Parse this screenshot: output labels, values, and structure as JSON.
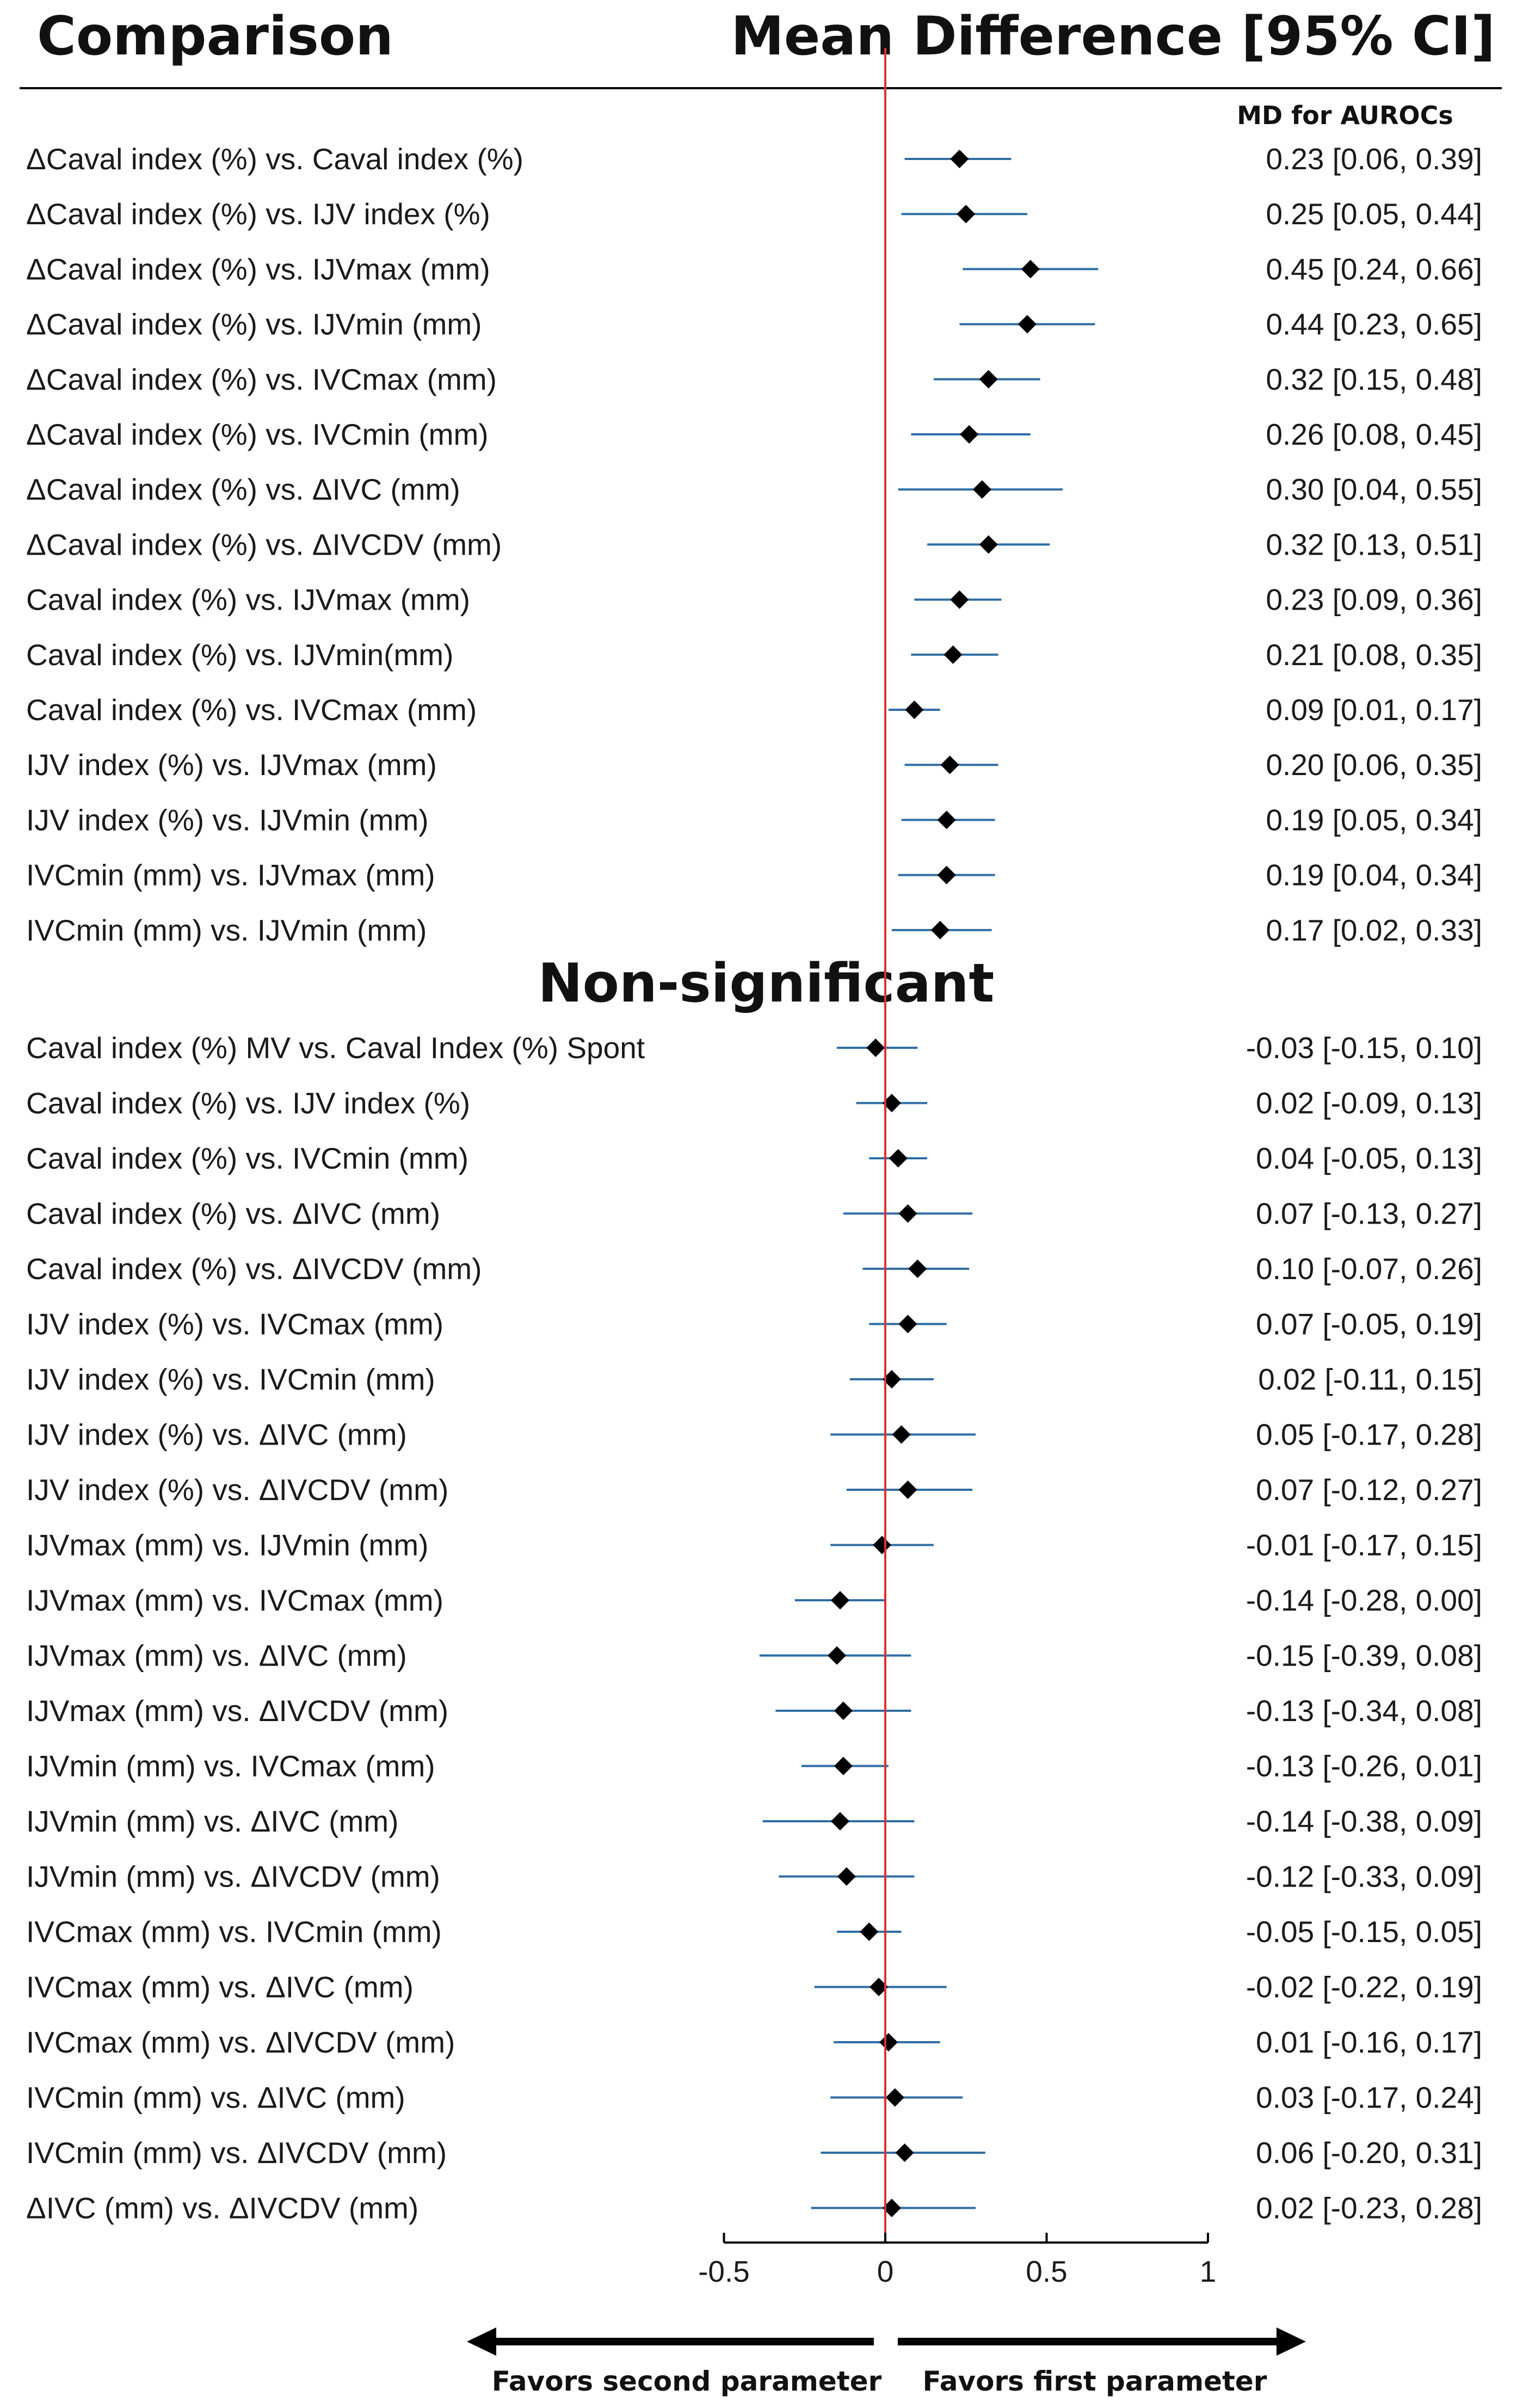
{
  "header": {
    "left": "Comparison",
    "right": "Mean Difference [95% CI]",
    "col_label": "MD for AUROCs"
  },
  "colors": {
    "ci_line": "#2e6da4",
    "zero_line": "#e03030",
    "marker": "#000000",
    "axis": "#000000"
  },
  "chart_data": {
    "type": "forest",
    "xlim": [
      -0.5,
      1
    ],
    "ticks": [
      {
        "value": -0.5,
        "label": "-0.5"
      },
      {
        "value": 0,
        "label": "0"
      },
      {
        "value": 0.5,
        "label": "0.5"
      },
      {
        "value": 1,
        "label": "1"
      }
    ],
    "sections": [
      {
        "title": "",
        "rows": [
          {
            "label": "ΔCaval index (%) vs. Caval index (%)",
            "md": 0.23,
            "lo": 0.06,
            "hi": 0.39,
            "text": "0.23 [0.06,  0.39]"
          },
          {
            "label": "ΔCaval index (%) vs. IJV index (%)",
            "md": 0.25,
            "lo": 0.05,
            "hi": 0.44,
            "text": "0.25 [0.05,  0.44]"
          },
          {
            "label": "ΔCaval index (%) vs. IJVmax (mm)",
            "md": 0.45,
            "lo": 0.24,
            "hi": 0.66,
            "text": "0.45 [0.24,  0.66]"
          },
          {
            "label": "ΔCaval index (%) vs. IJVmin (mm)",
            "md": 0.44,
            "lo": 0.23,
            "hi": 0.65,
            "text": "0.44 [0.23,  0.65]"
          },
          {
            "label": "ΔCaval index (%) vs. IVCmax (mm)",
            "md": 0.32,
            "lo": 0.15,
            "hi": 0.48,
            "text": "0.32 [0.15,  0.48]"
          },
          {
            "label": "ΔCaval index (%) vs. IVCmin (mm)",
            "md": 0.26,
            "lo": 0.08,
            "hi": 0.45,
            "text": "0.26 [0.08,  0.45]"
          },
          {
            "label": "ΔCaval index (%) vs. ΔIVC (mm)",
            "md": 0.3,
            "lo": 0.04,
            "hi": 0.55,
            "text": "0.30 [0.04,  0.55]"
          },
          {
            "label": "ΔCaval index (%) vs. ΔIVCDV (mm)",
            "md": 0.32,
            "lo": 0.13,
            "hi": 0.51,
            "text": "0.32 [0.13,  0.51]"
          },
          {
            "label": "Caval index (%) vs. IJVmax (mm)",
            "md": 0.23,
            "lo": 0.09,
            "hi": 0.36,
            "text": "0.23 [0.09,  0.36]"
          },
          {
            "label": "Caval index (%) vs. IJVmin(mm)",
            "md": 0.21,
            "lo": 0.08,
            "hi": 0.35,
            "text": "0.21 [0.08,  0.35]"
          },
          {
            "label": "Caval index (%) vs. IVCmax (mm)",
            "md": 0.09,
            "lo": 0.01,
            "hi": 0.17,
            "text": "0.09 [0.01,  0.17]"
          },
          {
            "label": "IJV index (%) vs. IJVmax (mm)",
            "md": 0.2,
            "lo": 0.06,
            "hi": 0.35,
            "text": "0.20 [0.06,  0.35]"
          },
          {
            "label": "IJV index (%) vs. IJVmin (mm)",
            "md": 0.19,
            "lo": 0.05,
            "hi": 0.34,
            "text": "0.19 [0.05,  0.34]"
          },
          {
            "label": "IVCmin (mm) vs. IJVmax (mm)",
            "md": 0.19,
            "lo": 0.04,
            "hi": 0.34,
            "text": "0.19 [0.04,  0.34]"
          },
          {
            "label": "IVCmin (mm) vs. IJVmin (mm)",
            "md": 0.17,
            "lo": 0.02,
            "hi": 0.33,
            "text": "0.17 [0.02,  0.33]"
          }
        ]
      },
      {
        "title": "Non-significant",
        "rows": [
          {
            "label": "Caval index (%) MV vs. Caval Index (%) Spont",
            "md": -0.03,
            "lo": -0.15,
            "hi": 0.1,
            "text": "-0.03 [-0.15,  0.10]"
          },
          {
            "label": "Caval index (%) vs. IJV index (%)",
            "md": 0.02,
            "lo": -0.09,
            "hi": 0.13,
            "text": "0.02 [-0.09,  0.13]"
          },
          {
            "label": "Caval index (%) vs. IVCmin (mm)",
            "md": 0.04,
            "lo": -0.05,
            "hi": 0.13,
            "text": "0.04 [-0.05,  0.13]"
          },
          {
            "label": "Caval index (%) vs. ΔIVC (mm)",
            "md": 0.07,
            "lo": -0.13,
            "hi": 0.27,
            "text": "0.07 [-0.13,  0.27]"
          },
          {
            "label": "Caval index (%) vs. ΔIVCDV (mm)",
            "md": 0.1,
            "lo": -0.07,
            "hi": 0.26,
            "text": "0.10 [-0.07,  0.26]"
          },
          {
            "label": "IJV index (%) vs. IVCmax (mm)",
            "md": 0.07,
            "lo": -0.05,
            "hi": 0.19,
            "text": "0.07 [-0.05,  0.19]"
          },
          {
            "label": "IJV index (%) vs. IVCmin (mm)",
            "md": 0.02,
            "lo": -0.11,
            "hi": 0.15,
            "text": "0.02 [-0.11,  0.15]"
          },
          {
            "label": "IJV index (%) vs. ΔIVC (mm)",
            "md": 0.05,
            "lo": -0.17,
            "hi": 0.28,
            "text": "0.05 [-0.17,  0.28]"
          },
          {
            "label": "IJV index (%) vs. ΔIVCDV (mm)",
            "md": 0.07,
            "lo": -0.12,
            "hi": 0.27,
            "text": "0.07 [-0.12,  0.27]"
          },
          {
            "label": "IJVmax (mm) vs. IJVmin (mm)",
            "md": -0.01,
            "lo": -0.17,
            "hi": 0.15,
            "text": "-0.01 [-0.17,  0.15]"
          },
          {
            "label": "IJVmax (mm) vs. IVCmax (mm)",
            "md": -0.14,
            "lo": -0.28,
            "hi": 0.0,
            "text": "-0.14 [-0.28,  0.00]"
          },
          {
            "label": "IJVmax (mm) vs. ΔIVC (mm)",
            "md": -0.15,
            "lo": -0.39,
            "hi": 0.08,
            "text": "-0.15 [-0.39,  0.08]"
          },
          {
            "label": "IJVmax (mm) vs. ΔIVCDV (mm)",
            "md": -0.13,
            "lo": -0.34,
            "hi": 0.08,
            "text": "-0.13 [-0.34,  0.08]"
          },
          {
            "label": "IJVmin (mm) vs. IVCmax (mm)",
            "md": -0.13,
            "lo": -0.26,
            "hi": 0.01,
            "text": "-0.13 [-0.26,  0.01]"
          },
          {
            "label": "IJVmin (mm) vs. ΔIVC (mm)",
            "md": -0.14,
            "lo": -0.38,
            "hi": 0.09,
            "text": "-0.14 [-0.38,  0.09]"
          },
          {
            "label": "IJVmin (mm) vs. ΔIVCDV (mm)",
            "md": -0.12,
            "lo": -0.33,
            "hi": 0.09,
            "text": "-0.12 [-0.33,  0.09]"
          },
          {
            "label": "IVCmax (mm) vs. IVCmin (mm)",
            "md": -0.05,
            "lo": -0.15,
            "hi": 0.05,
            "text": "-0.05 [-0.15,  0.05]"
          },
          {
            "label": "IVCmax (mm) vs. ΔIVC (mm)",
            "md": -0.02,
            "lo": -0.22,
            "hi": 0.19,
            "text": "-0.02 [-0.22,  0.19]"
          },
          {
            "label": "IVCmax (mm) vs. ΔIVCDV (mm)",
            "md": 0.01,
            "lo": -0.16,
            "hi": 0.17,
            "text": "0.01 [-0.16,  0.17]"
          },
          {
            "label": "IVCmin (mm) vs. ΔIVC (mm)",
            "md": 0.03,
            "lo": -0.17,
            "hi": 0.24,
            "text": "0.03 [-0.17,  0.24]"
          },
          {
            "label": "IVCmin (mm) vs. ΔIVCDV (mm)",
            "md": 0.06,
            "lo": -0.2,
            "hi": 0.31,
            "text": "0.06 [-0.20,  0.31]"
          },
          {
            "label": "ΔIVC (mm) vs. ΔIVCDV (mm)",
            "md": 0.02,
            "lo": -0.23,
            "hi": 0.28,
            "text": "0.02 [-0.23,  0.28]"
          }
        ]
      }
    ],
    "direction_labels": {
      "left": "Favors second parameter",
      "right": "Favors first parameter"
    }
  }
}
